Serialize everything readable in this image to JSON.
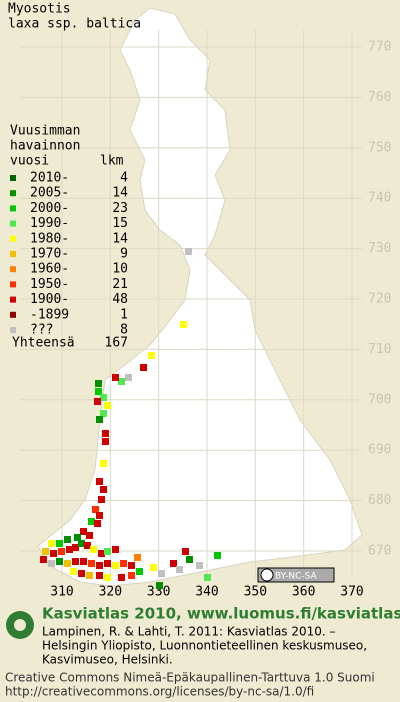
{
  "title": [
    "Myosotis",
    "laxa ssp. baltica"
  ],
  "legend": {
    "header": [
      "Vuusimman",
      "havainnon",
      "vuosi"
    ],
    "count_header": "lkm",
    "rows": [
      {
        "label": "2010-",
        "count": 4,
        "color": "#006400"
      },
      {
        "label": "2005-",
        "count": 14,
        "color": "#009000"
      },
      {
        "label": "2000-",
        "count": 23,
        "color": "#00c800"
      },
      {
        "label": "1990-",
        "count": 15,
        "color": "#50e850"
      },
      {
        "label": "1980-",
        "count": 14,
        "color": "#ffff00"
      },
      {
        "label": "1970-",
        "count": 9,
        "color": "#f0c000"
      },
      {
        "label": "1960-",
        "count": 10,
        "color": "#ff8000"
      },
      {
        "label": "1950-",
        "count": 21,
        "color": "#ff3000"
      },
      {
        "label": "1900-",
        "count": 48,
        "color": "#d00000"
      },
      {
        "label": "-1899",
        "count": 1,
        "color": "#900000"
      },
      {
        "label": "???",
        "count": 8,
        "color": "#c0c0c0"
      }
    ],
    "total_label": "Yhteensä",
    "total": 167
  },
  "map": {
    "northing": [
      770,
      760,
      750,
      740,
      730,
      720,
      710,
      700,
      690,
      680,
      670
    ],
    "easting": [
      310,
      320,
      330,
      340,
      350,
      360,
      370
    ]
  },
  "badge": "BY-NC-SA",
  "footer": {
    "heading": "Kasviatlas 2010, www.luomus.fi/kasviatlas",
    "citation": [
      "Lampinen, R. & Lahti, T. 2011: Kasviatlas 2010. –",
      "Helsingin Yliopisto, Luonnontieteellinen keskusmuseo,",
      "Kasvimuseo, Helsinki."
    ],
    "license": [
      "Creative Commons Nimeä-Epäkaupallinen-Tarttuva 1.0 Suomi",
      "http://creativecommons.org/licenses/by-nc-sa/1.0/fi"
    ]
  }
}
